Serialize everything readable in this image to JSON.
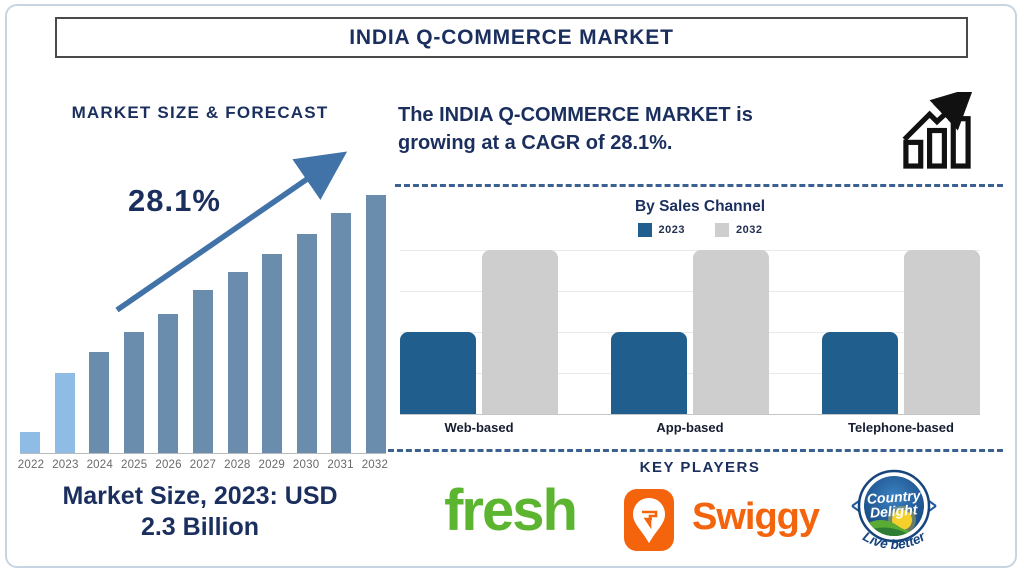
{
  "colors": {
    "navy": "#1b2f5e",
    "steel": "#4273a8",
    "bar_slate": "#6a8cad",
    "bar_light": "#8fbce4",
    "sales_blue": "#1f5e8d",
    "sales_gray": "#cecece",
    "fresh_green": "#5cb531",
    "swiggy_orange": "#f4640c",
    "cd_blue": "#1d5a9e",
    "dash": "#3a6191",
    "frame": "#c7d5e2",
    "title_border": "#4a4a4a",
    "year_gray": "#6a6a6a"
  },
  "page": {
    "title": "INDIA Q-COMMERCE MARKET"
  },
  "left_panel": {
    "heading": "MARKET SIZE & FORECAST",
    "cagr_annotation": "28.1%",
    "market_size_line1": "Market Size, 2023: USD",
    "market_size_line2": "2.3 Billion"
  },
  "right_panel": {
    "growth_text_line1": "The INDIA Q-COMMERCE MARKET is",
    "growth_text_line2": "growing at a CAGR of 28.1%.",
    "key_players": {
      "heading": "KEY PLAYERS",
      "fresh_label": "fresh",
      "swiggy_label": "Swiggy",
      "country_delight_line1": "Country",
      "country_delight_line2": "Delight",
      "country_delight_tagline": "Live better"
    }
  },
  "chart_data": [
    {
      "name": "market-size-forecast",
      "type": "bar",
      "title": "MARKET SIZE & FORECAST",
      "categories": [
        "2022",
        "2023",
        "2024",
        "2025",
        "2026",
        "2027",
        "2028",
        "2029",
        "2030",
        "2031",
        "2032"
      ],
      "values_relative_pct": [
        8,
        31,
        39,
        47,
        54,
        63,
        70,
        77,
        85,
        93,
        100
      ],
      "highlight_years": [
        "2022",
        "2023"
      ],
      "bar_color": "#6a8cad",
      "highlight_color": "#8fbce4",
      "annotation": "28.1% CAGR (arrow)",
      "known_point": "Market Size, 2023: USD 2.3 Billion",
      "ylabel": "",
      "xlabel": "",
      "yaxis": "none (illustrative heights, no value axis shown)",
      "grid": false
    },
    {
      "name": "by-sales-channel",
      "type": "bar",
      "title": "By Sales Channel",
      "categories": [
        "Web-based",
        "App-based",
        "Telephone-based"
      ],
      "series": [
        {
          "name": "2023",
          "color": "#1f5e8d",
          "values_relative_pct": [
            50,
            50,
            50
          ]
        },
        {
          "name": "2032",
          "color": "#cecece",
          "values_relative_pct": [
            100,
            100,
            100
          ]
        }
      ],
      "legend_position": "top",
      "grid": true,
      "yaxis": "none (illustrative heights, no value axis shown)"
    }
  ]
}
